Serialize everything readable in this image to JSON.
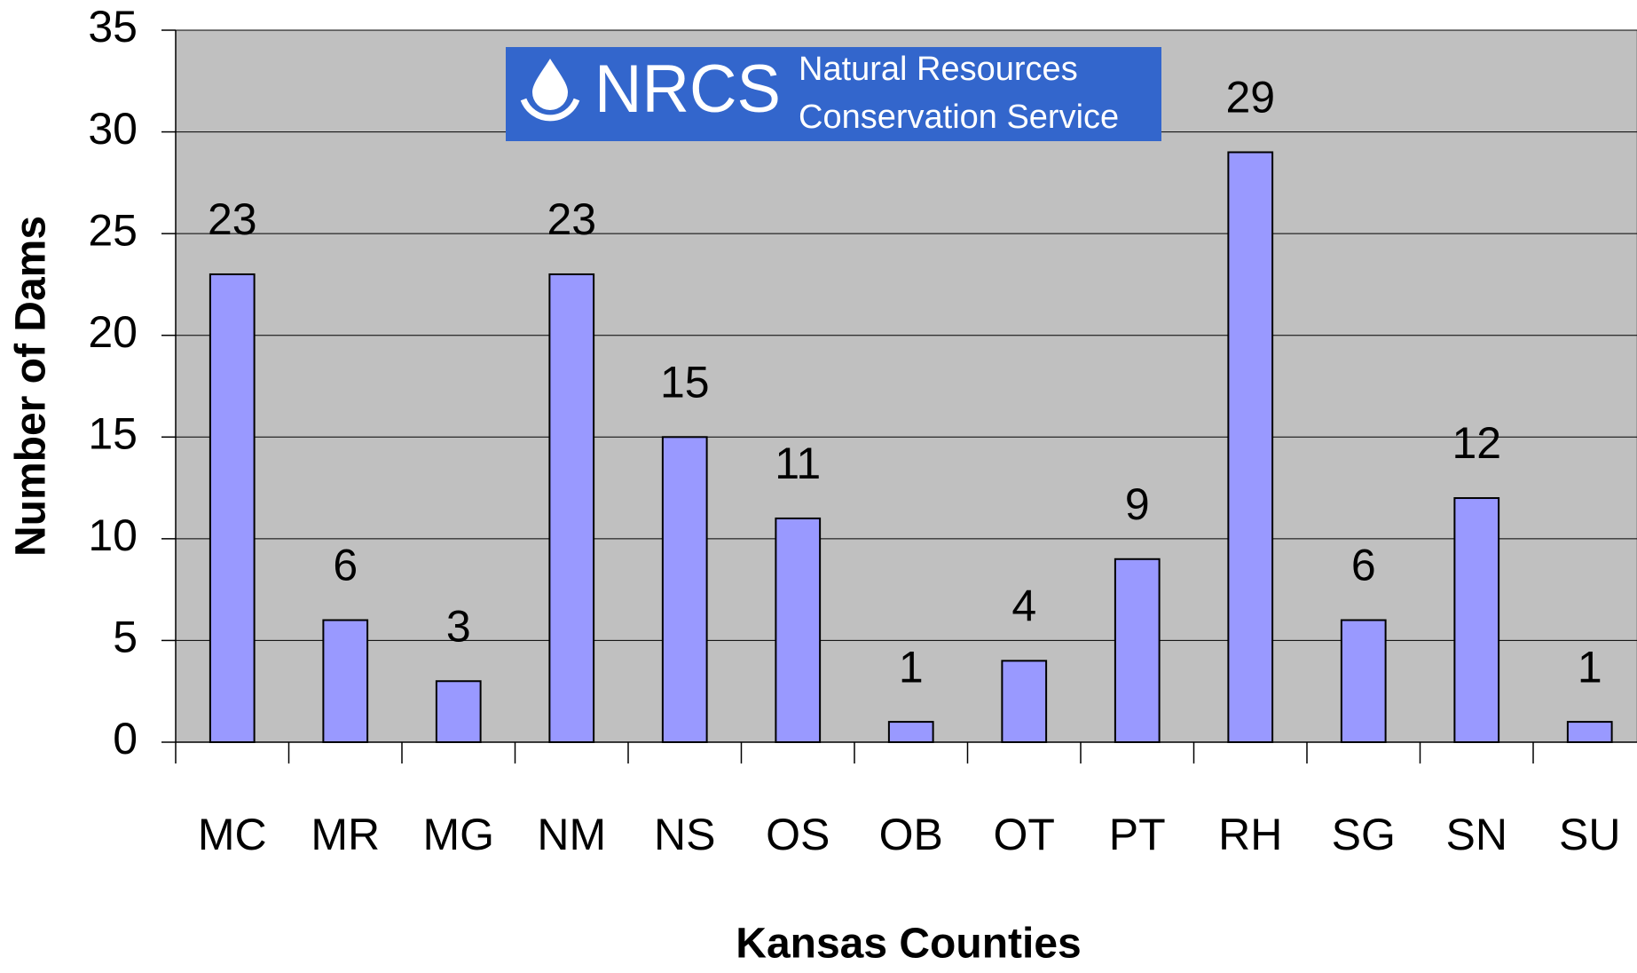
{
  "logo": {
    "acronym": "NRCS",
    "line1": "Natural Resources",
    "line2": "Conservation Service"
  },
  "chart_data": {
    "type": "bar",
    "x_label": "Kansas Counties",
    "y_label": "Number of Dams",
    "categories": [
      "MC",
      "MR",
      "MG",
      "NM",
      "NS",
      "OS",
      "OB",
      "OT",
      "PT",
      "RH",
      "SG",
      "SN",
      "SU"
    ],
    "values": [
      23,
      6,
      3,
      23,
      15,
      11,
      1,
      4,
      9,
      29,
      6,
      12,
      1
    ],
    "color": "#9999ff",
    "background": "#c0c0c0",
    "ylim": [
      0,
      35
    ],
    "yticks": [
      0,
      5,
      10,
      15,
      20,
      25,
      30,
      35
    ],
    "grid": true
  }
}
